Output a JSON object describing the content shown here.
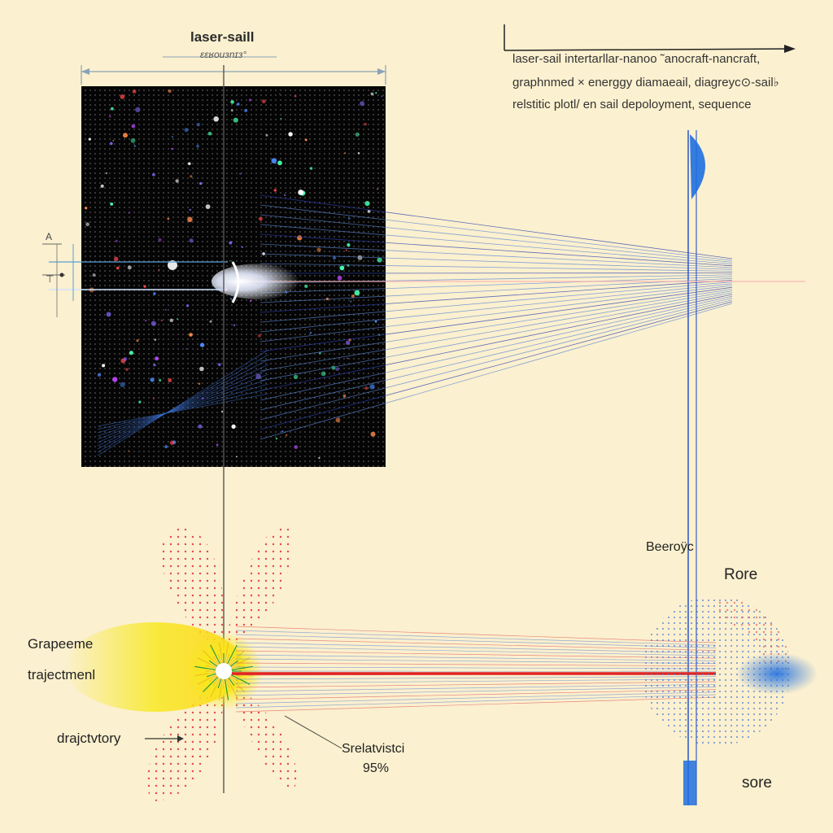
{
  "diagram": {
    "top_label": "laser-saill",
    "top_sublabel": "ɛɛʁouɜnɪɜ°",
    "caption_lines": [
      "laser-sail intertarllar-nanoo ˜anocraft-nancraft,",
      "graphnmed × energgy diamaeail, diagreyc⊙-sail♭",
      "relstitic plotl/ en sail depoloyment, sequence"
    ],
    "left_labels": {
      "graphene": "Grapeeme",
      "trajectory_1": "trajectmenl",
      "trajectory_2": "drajctvtory"
    },
    "relativistic": {
      "label": "Srelatvistci",
      "value": "95%"
    },
    "right_labels": {
      "beam": "Beeroÿc",
      "rore": "Rore",
      "sore": "sore"
    },
    "side_markers": {
      "a": "A",
      "b": "⊤"
    },
    "colors": {
      "background": "#fbf0cf",
      "panel": "#050505",
      "laser_red": "#e02424",
      "beam_blue": "#2a5fd6",
      "flare_yellow": "#f7e81a"
    }
  }
}
